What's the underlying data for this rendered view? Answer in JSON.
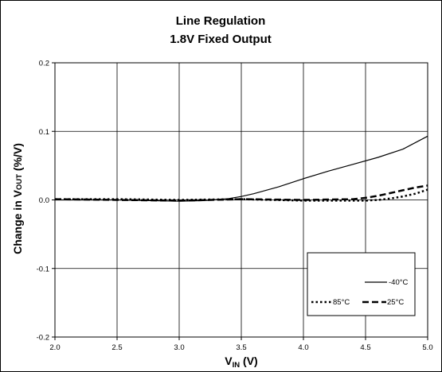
{
  "chart_data": {
    "type": "line",
    "title": "Line Regulation",
    "subtitle": "1.8V Fixed Output",
    "xlabel": {
      "main": "V",
      "sub": "IN",
      "unit": " (V)"
    },
    "ylabel": {
      "main": "Change in V",
      "sub": "OUT",
      "unit": " (%/V)"
    },
    "xlim": [
      2.0,
      5.0
    ],
    "ylim": [
      -0.2,
      0.2
    ],
    "x_ticks": [
      "2.0",
      "2.5",
      "3.0",
      "3.5",
      "4.0",
      "4.5",
      "5.0"
    ],
    "y_ticks": [
      "-0.2",
      "-0.1",
      "0.0",
      "0.1",
      "0.2"
    ],
    "grid": true,
    "legend_position": "bottom-right",
    "series": [
      {
        "name": "-40°C",
        "style": "solid",
        "x": [
          2.0,
          2.5,
          3.0,
          3.2,
          3.4,
          3.5,
          3.6,
          3.8,
          4.0,
          4.2,
          4.4,
          4.6,
          4.8,
          5.0
        ],
        "y": [
          0.0,
          0.0,
          -0.002,
          -0.001,
          0.002,
          0.005,
          0.009,
          0.019,
          0.031,
          0.042,
          0.052,
          0.062,
          0.074,
          0.093
        ]
      },
      {
        "name": "85°C",
        "style": "dotted",
        "x": [
          2.0,
          2.5,
          3.0,
          3.5,
          4.0,
          4.5,
          4.6,
          4.7,
          4.8,
          4.9,
          5.0
        ],
        "y": [
          0.001,
          0.001,
          0.0,
          0.001,
          -0.001,
          -0.001,
          0.0,
          0.002,
          0.005,
          0.009,
          0.015
        ]
      },
      {
        "name": "25°C",
        "style": "dashed",
        "x": [
          2.0,
          2.5,
          3.0,
          3.5,
          4.0,
          4.4,
          4.5,
          4.6,
          4.7,
          4.8,
          4.9,
          5.0
        ],
        "y": [
          0.001,
          0.0,
          -0.001,
          0.001,
          0.0,
          0.001,
          0.003,
          0.006,
          0.01,
          0.014,
          0.018,
          0.021
        ]
      }
    ],
    "colors": {
      "lines": "#000000",
      "grid": "#000000",
      "background": "#ffffff"
    }
  }
}
